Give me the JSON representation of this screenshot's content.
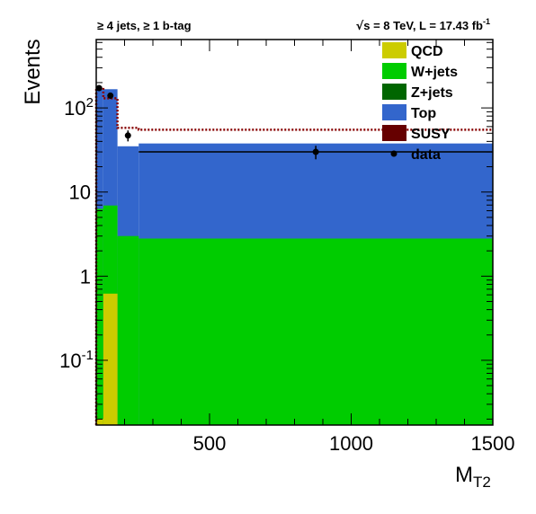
{
  "chart_data": {
    "type": "bar",
    "title_left": "≥ 4 jets, ≥ 1 b-tag",
    "title_right": {
      "sqrt_s": "s",
      "text": " = 8 TeV, L = 17.43 fb",
      "superscript": "-1"
    },
    "xlabel": {
      "main": "M",
      "subscript": "T2"
    },
    "ylabel": "Events",
    "xlim": [
      100,
      1500
    ],
    "ylim": [
      0.017,
      650
    ],
    "yscale": "log",
    "x_ticks": [
      {
        "value": 500,
        "label": "500"
      },
      {
        "value": 1000,
        "label": "1000"
      },
      {
        "value": 1500,
        "label": "1500"
      }
    ],
    "y_ticks": [
      {
        "value": 0.1,
        "base": "10",
        "exp": "-1"
      },
      {
        "value": 1,
        "base": "1",
        "exp": ""
      },
      {
        "value": 10,
        "base": "10",
        "exp": ""
      },
      {
        "value": 100,
        "base": "10",
        "exp": "2"
      }
    ],
    "bin_edges": [
      100,
      125,
      175,
      250,
      1500
    ],
    "series": [
      {
        "name": "QCD",
        "key": "qcd",
        "color": "#cccc00",
        "values": [
          0.02,
          0.62,
          0.0,
          0.0
        ]
      },
      {
        "name": "W+jets",
        "key": "wjets",
        "color": "#00cc00",
        "values": [
          6.3,
          6.3,
          3.0,
          2.8
        ]
      },
      {
        "name": "Z+jets",
        "key": "zjets",
        "color": "#006600",
        "values": [
          0.0,
          0.0,
          0.0,
          0.0
        ]
      },
      {
        "name": "Top",
        "key": "top",
        "color": "#3366cc",
        "values": [
          160,
          160,
          32,
          35
        ]
      },
      {
        "name": "SUSY",
        "key": "susy",
        "color": "#660000",
        "values": [
          0.0,
          0.0,
          0.0,
          0.0
        ]
      }
    ],
    "susy_overlay": {
      "style": "dotted",
      "color": "#880000",
      "values": [
        175,
        130,
        58,
        55
      ]
    },
    "data": {
      "name": "data",
      "points": [
        {
          "x": 110,
          "y": 172,
          "yerr": 13
        },
        {
          "x": 150,
          "y": 140,
          "yerr": 12
        },
        {
          "x": 212,
          "y": 47,
          "yerr": 7
        },
        {
          "x": 875,
          "y": 30,
          "yerr": 5.5,
          "xerr": [
            250,
            1500
          ]
        }
      ]
    },
    "legend": {
      "position": "top-right",
      "entries": [
        {
          "label": "QCD",
          "key": "qcd"
        },
        {
          "label": "W+jets",
          "key": "wjets"
        },
        {
          "label": "Z+jets",
          "key": "zjets"
        },
        {
          "label": "Top",
          "key": "top"
        },
        {
          "label": "SUSY",
          "key": "susy"
        },
        {
          "label": "data",
          "key": "data"
        }
      ]
    }
  }
}
